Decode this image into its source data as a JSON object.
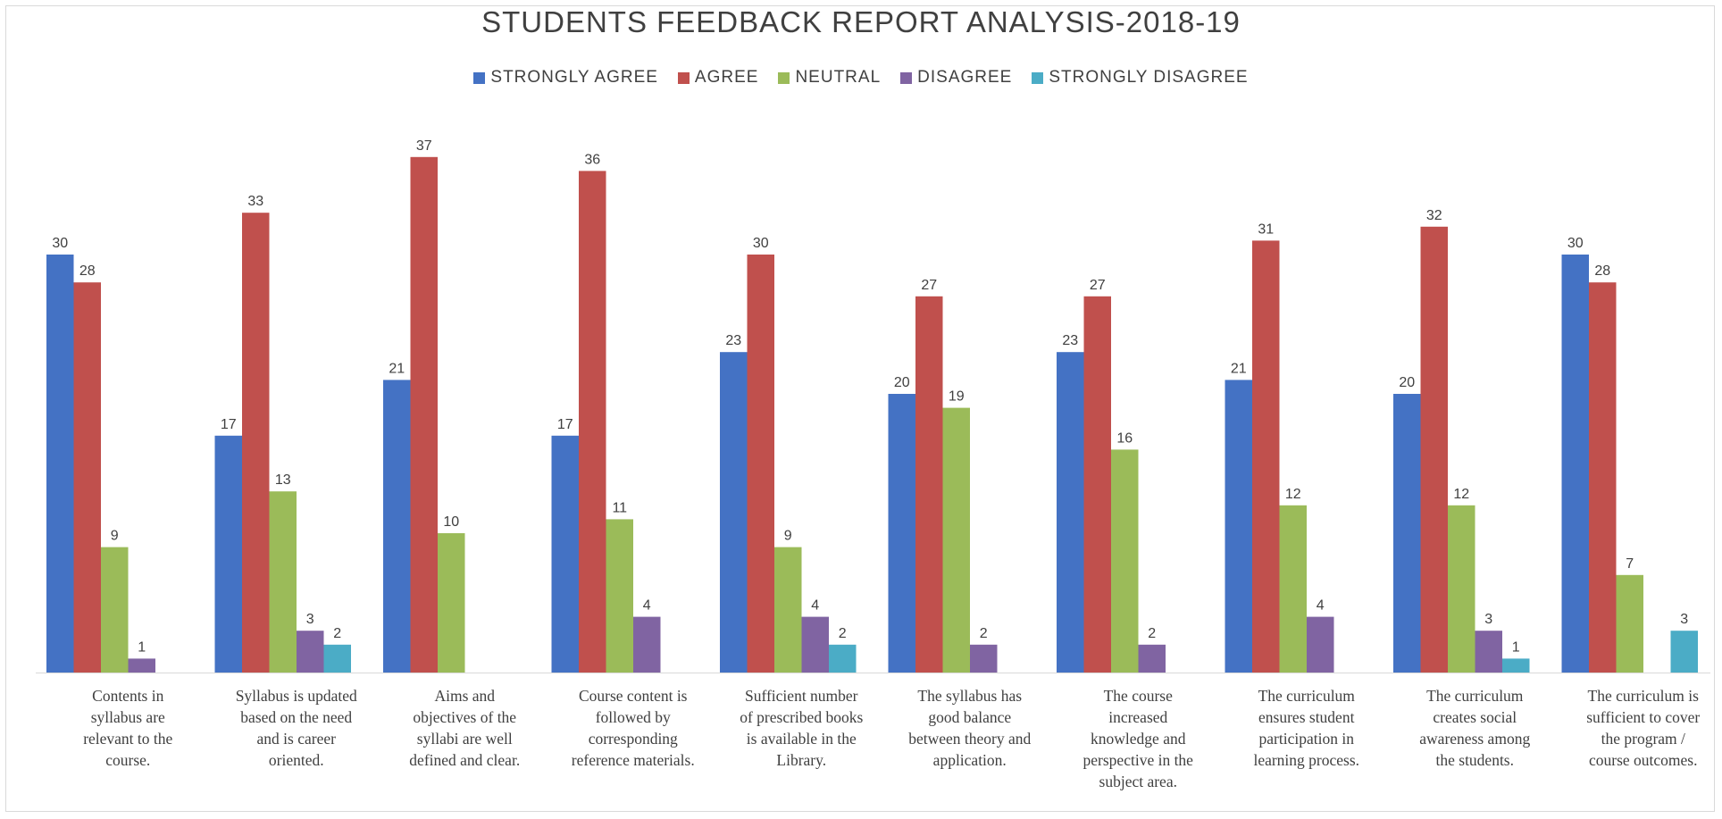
{
  "chart_data": {
    "type": "bar",
    "title": "STUDENTS FEEDBACK REPORT ANALYSIS-2018-19",
    "xlabel": "",
    "ylabel": "",
    "ylim": [
      0,
      40
    ],
    "grid": false,
    "legend_position": "top",
    "categories": [
      [
        "Contents in",
        "syllabus are",
        "relevant to the",
        "course."
      ],
      [
        "Syllabus is updated",
        "based on the need",
        "and is career",
        "oriented."
      ],
      [
        "Aims and",
        "objectives of the",
        "syllabi are well",
        "defined and clear."
      ],
      [
        "Course content is",
        "followed by",
        "corresponding",
        "reference materials."
      ],
      [
        "Sufficient number",
        "of prescribed books",
        "is available in the",
        "Library."
      ],
      [
        "The syllabus has",
        "good balance",
        "between theory and",
        "application."
      ],
      [
        "The course",
        "increased",
        "knowledge and",
        "perspective in the",
        "subject area."
      ],
      [
        "The curriculum",
        "ensures student",
        "participation in",
        "learning process."
      ],
      [
        "The curriculum",
        "creates social",
        "awareness among",
        "the students."
      ],
      [
        "The curriculum is",
        "sufficient to cover",
        "the program /",
        "course outcomes."
      ]
    ],
    "series": [
      {
        "name": "STRONGLY AGREE",
        "color": "#4472c4",
        "values": [
          30,
          17,
          21,
          17,
          23,
          20,
          23,
          21,
          20,
          30
        ]
      },
      {
        "name": "AGREE",
        "color": "#c0504d",
        "values": [
          28,
          33,
          37,
          36,
          30,
          27,
          27,
          31,
          32,
          28
        ]
      },
      {
        "name": "NEUTRAL",
        "color": "#9bbb59",
        "values": [
          9,
          13,
          10,
          11,
          9,
          19,
          16,
          12,
          12,
          7
        ]
      },
      {
        "name": "DISAGREE",
        "color": "#8064a2",
        "values": [
          1,
          3,
          null,
          4,
          4,
          2,
          2,
          4,
          3,
          null
        ]
      },
      {
        "name": "STRONGLY DISAGREE",
        "color": "#4bacc6",
        "values": [
          null,
          2,
          null,
          null,
          2,
          null,
          null,
          null,
          1,
          3
        ]
      }
    ]
  }
}
